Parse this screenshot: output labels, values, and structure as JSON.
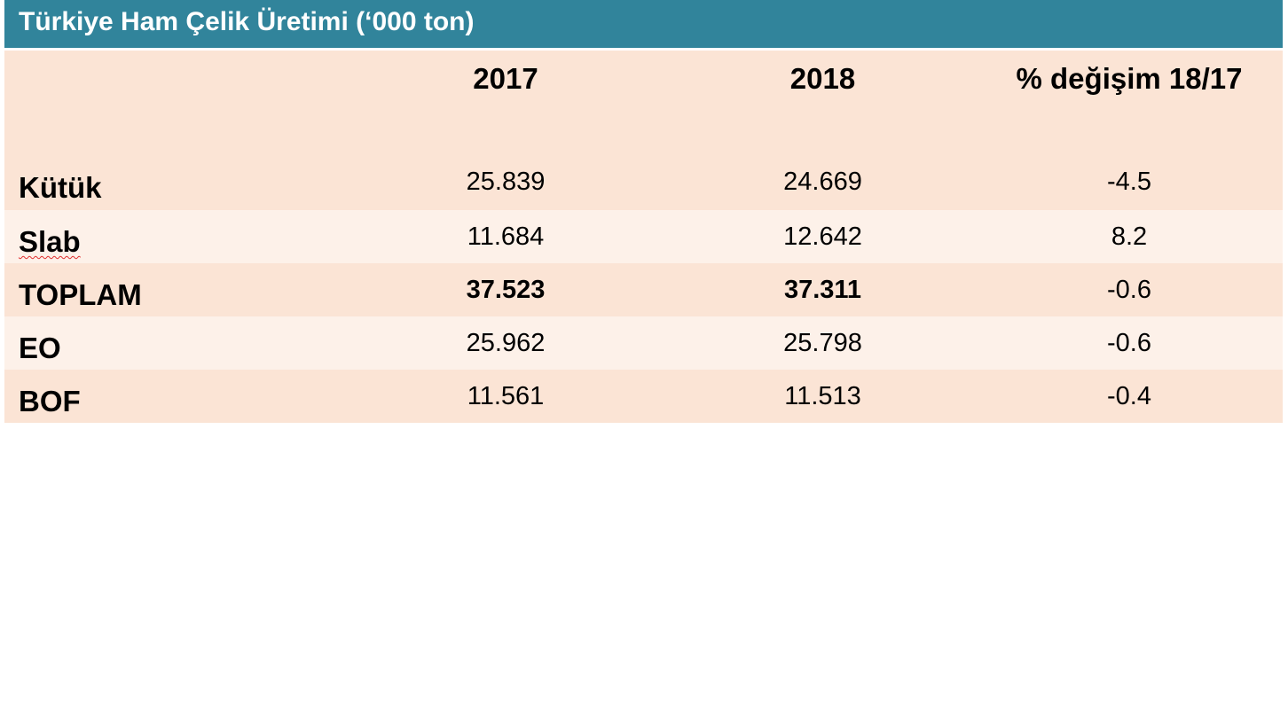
{
  "title": "Türkiye Ham Çelik Üretimi (‘000 ton)",
  "columns": [
    "2017",
    "2018",
    "% değişim 18/17"
  ],
  "rows": [
    {
      "label": "Kütük",
      "v2017": "25.839",
      "v2018": "24.669",
      "change": "-4.5"
    },
    {
      "label": "Slab",
      "v2017": "11.684",
      "v2018": "12.642",
      "change": "8.2"
    },
    {
      "label": "TOPLAM",
      "v2017": "37.523",
      "v2018": "37.311",
      "change": "-0.6"
    },
    {
      "label": "EO",
      "v2017": "25.962",
      "v2018": "25.798",
      "change": "-0.6"
    },
    {
      "label": "BOF",
      "v2017": "11.561",
      "v2018": "11.513",
      "change": "-0.4"
    }
  ],
  "colors": {
    "title_bar": "#31849b",
    "row_dark": "#fbe4d5",
    "row_light": "#fdf1e9"
  }
}
